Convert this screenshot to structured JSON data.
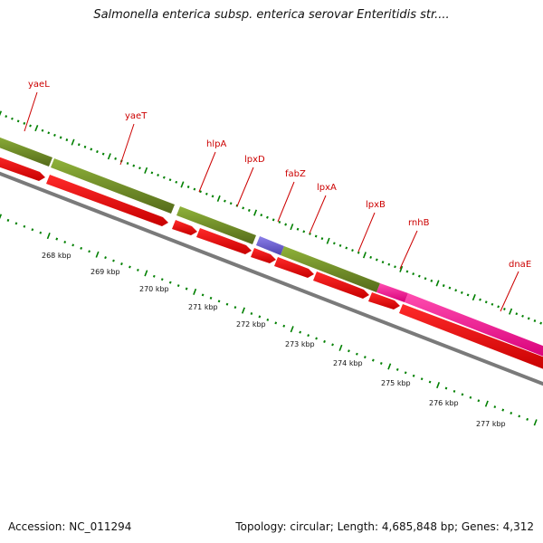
{
  "title": "Salmonella enterica subsp. enterica serovar Enteritidis str....",
  "footer": {
    "accession": "Accession: NC_011294",
    "summary": "Topology: circular; Length: 4,685,848 bp; Genes: 4,312"
  },
  "colors": {
    "green_feature": "#6b8e23",
    "blue_feature": "#6a5acd",
    "magenta_feature": "#ff1493",
    "red_cds": "#ff0000",
    "backbone": "#808080",
    "tick": "#008000",
    "gene_label": "#cc0000"
  },
  "gene_labels": [
    "yaeL",
    "yaeT",
    "hlpA",
    "lpxD",
    "fabZ",
    "lpxA",
    "lpxB",
    "rnhB",
    "dnaE"
  ],
  "kbp_labels": [
    "268 kbp",
    "269 kbp",
    "270 kbp",
    "271 kbp",
    "272 kbp",
    "273 kbp",
    "274 kbp",
    "275 kbp",
    "276 kbp",
    "277 kbp"
  ]
}
